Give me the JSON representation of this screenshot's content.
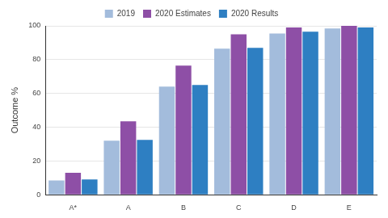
{
  "chart_data": {
    "type": "bar",
    "y_label": "Outcome %",
    "categories": [
      "A*",
      "A",
      "B",
      "C",
      "D",
      "E"
    ],
    "series": [
      {
        "name": "2019",
        "color": "#a3bcdc",
        "values": [
          8.5,
          32,
          64,
          86.5,
          95.5,
          98.5
        ]
      },
      {
        "name": "2020 Estimates",
        "color": "#8e4fa6",
        "values": [
          13,
          43.5,
          76.5,
          95,
          99,
          100
        ]
      },
      {
        "name": "2020 Results",
        "color": "#2e7fc2",
        "values": [
          9,
          32.5,
          65,
          87,
          96.5,
          99
        ]
      }
    ],
    "ylim": [
      0,
      100
    ],
    "yticks": [
      0,
      20,
      40,
      60,
      80,
      100
    ],
    "grid": true,
    "legend": "top"
  }
}
